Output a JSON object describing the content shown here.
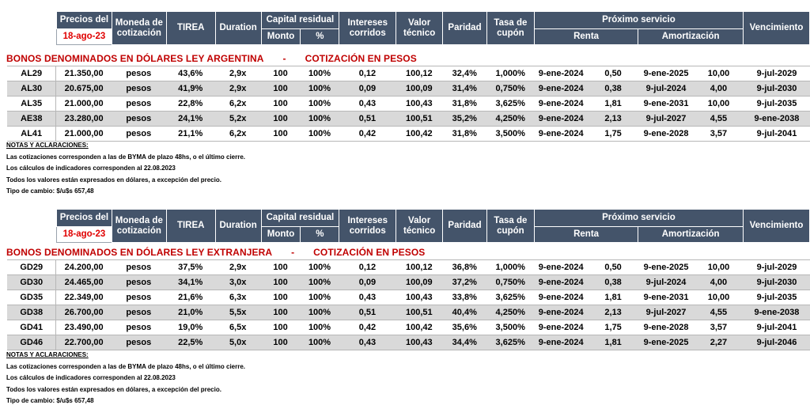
{
  "headers": {
    "precios_del": "Precios del",
    "fecha": "18-ago-23",
    "moneda_line1": "Moneda de",
    "moneda_line2": "cotización",
    "tirea": "TIREA",
    "duration": "Duration",
    "capital_residual": "Capital residual",
    "monto": "Monto",
    "pct": "%",
    "intereses_line1": "Intereses",
    "intereses_line2": "corridos",
    "valor_line1": "Valor",
    "valor_line2": "técnico",
    "paridad": "Paridad",
    "tasa_line1": "Tasa de",
    "tasa_line2": "cupón",
    "proximo_servicio": "Próximo servicio",
    "renta": "Renta",
    "amortizacion": "Amortización",
    "vencimiento": "Vencimiento"
  },
  "sections": [
    {
      "title_left": "BONOS DENOMINADOS EN DÓLARES LEY ARGENTINA",
      "title_sep": "-",
      "title_right": "COTIZACIÓN EN PESOS",
      "rows": [
        [
          "AL29",
          "21.350,00",
          "pesos",
          "43,6%",
          "2,9x",
          "100",
          "100%",
          "0,12",
          "100,12",
          "32,4%",
          "1,000%",
          "9-ene-2024",
          "0,50",
          "9-ene-2025",
          "10,00",
          "9-jul-2029"
        ],
        [
          "AL30",
          "20.675,00",
          "pesos",
          "41,9%",
          "2,9x",
          "100",
          "100%",
          "0,09",
          "100,09",
          "31,4%",
          "0,750%",
          "9-ene-2024",
          "0,38",
          "9-jul-2024",
          "4,00",
          "9-jul-2030"
        ],
        [
          "AL35",
          "21.000,00",
          "pesos",
          "22,8%",
          "6,2x",
          "100",
          "100%",
          "0,43",
          "100,43",
          "31,8%",
          "3,625%",
          "9-ene-2024",
          "1,81",
          "9-ene-2031",
          "10,00",
          "9-jul-2035"
        ],
        [
          "AE38",
          "23.280,00",
          "pesos",
          "24,1%",
          "5,2x",
          "100",
          "100%",
          "0,51",
          "100,51",
          "35,2%",
          "4,250%",
          "9-ene-2024",
          "2,13",
          "9-jul-2027",
          "4,55",
          "9-ene-2038"
        ],
        [
          "AL41",
          "21.000,00",
          "pesos",
          "21,1%",
          "6,2x",
          "100",
          "100%",
          "0,42",
          "100,42",
          "31,8%",
          "3,500%",
          "9-ene-2024",
          "1,75",
          "9-ene-2028",
          "3,57",
          "9-jul-2041"
        ]
      ],
      "notes": {
        "heading": "NOTAS Y ACLARACIONES:",
        "lines": [
          "Las cotizaciones corresponden a las de BYMA de plazo 48hs, o el último cierre.",
          "Los cálculos de indicadores corresponden al 22.08.2023",
          "Todos los valores están expresados en dólares, a excepción del precio.",
          "Tipo de cambio:  $/u$s 657,48"
        ]
      }
    },
    {
      "title_left": "BONOS DENOMINADOS EN DÓLARES LEY EXTRANJERA",
      "title_sep": "-",
      "title_right": "COTIZACIÓN EN PESOS",
      "rows": [
        [
          "GD29",
          "24.200,00",
          "pesos",
          "37,5%",
          "2,9x",
          "100",
          "100%",
          "0,12",
          "100,12",
          "36,8%",
          "1,000%",
          "9-ene-2024",
          "0,50",
          "9-ene-2025",
          "10,00",
          "9-jul-2029"
        ],
        [
          "GD30",
          "24.465,00",
          "pesos",
          "34,1%",
          "3,0x",
          "100",
          "100%",
          "0,09",
          "100,09",
          "37,2%",
          "0,750%",
          "9-ene-2024",
          "0,38",
          "9-jul-2024",
          "4,00",
          "9-jul-2030"
        ],
        [
          "GD35",
          "22.349,00",
          "pesos",
          "21,6%",
          "6,3x",
          "100",
          "100%",
          "0,43",
          "100,43",
          "33,8%",
          "3,625%",
          "9-ene-2024",
          "1,81",
          "9-ene-2031",
          "10,00",
          "9-jul-2035"
        ],
        [
          "GD38",
          "26.700,00",
          "pesos",
          "21,0%",
          "5,5x",
          "100",
          "100%",
          "0,51",
          "100,51",
          "40,4%",
          "4,250%",
          "9-ene-2024",
          "2,13",
          "9-jul-2027",
          "4,55",
          "9-ene-2038"
        ],
        [
          "GD41",
          "23.490,00",
          "pesos",
          "19,0%",
          "6,5x",
          "100",
          "100%",
          "0,42",
          "100,42",
          "35,6%",
          "3,500%",
          "9-ene-2024",
          "1,75",
          "9-ene-2028",
          "3,57",
          "9-jul-2041"
        ],
        [
          "GD46",
          "22.700,00",
          "pesos",
          "22,5%",
          "5,0x",
          "100",
          "100%",
          "0,43",
          "100,43",
          "34,4%",
          "3,625%",
          "9-ene-2024",
          "1,81",
          "9-ene-2025",
          "2,27",
          "9-jul-2046"
        ]
      ],
      "notes": {
        "heading": "NOTAS Y ACLARACIONES:",
        "lines": [
          "Las cotizaciones corresponden a las de BYMA de plazo 48hs, o el último cierre.",
          "Los cálculos de indicadores corresponden al 22.08.2023",
          "Todos los valores están expresados en dólares, a excepción del precio.",
          "Tipo de cambio:  $/u$s 657,48"
        ]
      }
    }
  ]
}
